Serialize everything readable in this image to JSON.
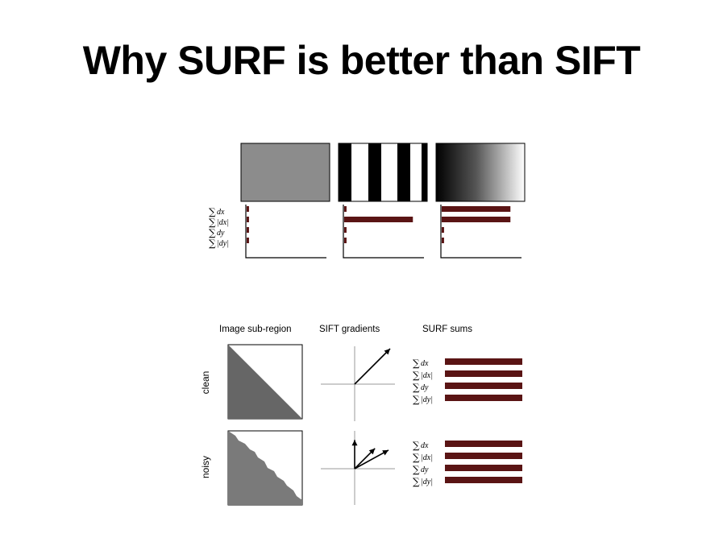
{
  "title": "Why SURF is better than SIFT",
  "top_figure": {
    "sum_labels": [
      {
        "sigma": "∑",
        "term": "dx"
      },
      {
        "sigma": "∑",
        "term": "|dx|"
      },
      {
        "sigma": "∑",
        "term": "dy"
      },
      {
        "sigma": "∑",
        "term": "|dy|"
      }
    ],
    "panels": [
      {
        "pattern": "uniform-gray",
        "bars": [
          0.03,
          0.03,
          0.03,
          0.03
        ]
      },
      {
        "pattern": "vertical-stripes",
        "bars": [
          0.03,
          0.87,
          0.03,
          0.03
        ]
      },
      {
        "pattern": "horizontal-gradient",
        "bars": [
          0.87,
          0.87,
          0.03,
          0.03
        ]
      }
    ],
    "colors": {
      "bar": "#5a1414",
      "gray_patch": "#8c8c8c"
    }
  },
  "bottom_figure": {
    "headers": [
      "Image sub-region",
      "SIFT gradients",
      "SURF sums"
    ],
    "rows": [
      {
        "label": "clean",
        "sift_arrows": [
          {
            "dx": 1.0,
            "dy": 1.0
          }
        ],
        "surf_bars": [
          1.0,
          1.0,
          1.0,
          1.0
        ]
      },
      {
        "label": "noisy",
        "sift_arrows": [
          {
            "dx": 1.0,
            "dy": 1.0
          },
          {
            "dx": 1.0,
            "dy": 0.55
          },
          {
            "dx": 0.0,
            "dy": 0.85
          }
        ],
        "surf_bars": [
          1.0,
          1.0,
          1.0,
          1.0
        ]
      }
    ],
    "sum_labels": [
      {
        "sigma": "∑",
        "term": "dx"
      },
      {
        "sigma": "∑",
        "term": "|dx|"
      },
      {
        "sigma": "∑",
        "term": "dy"
      },
      {
        "sigma": "∑",
        "term": "|dy|"
      }
    ],
    "colors": {
      "bar": "#5a1414",
      "clean_triangle": "#666666",
      "noisy_triangle": "#7a7a7a"
    }
  }
}
